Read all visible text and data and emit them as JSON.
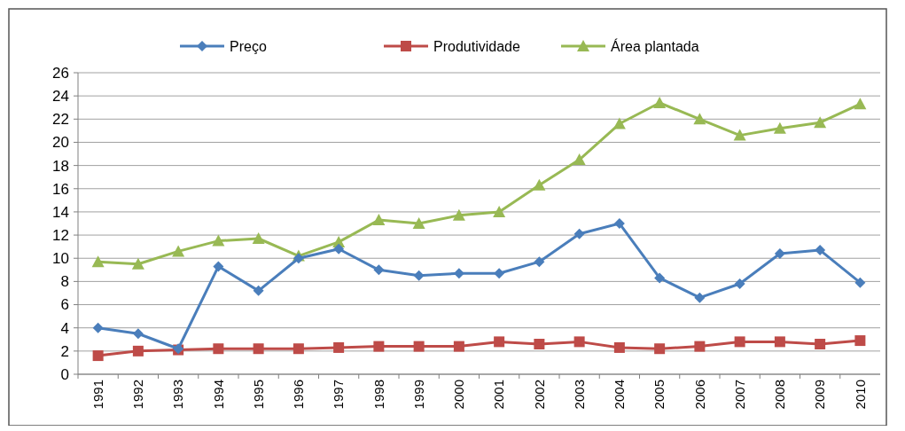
{
  "chart_data": {
    "type": "line",
    "categories": [
      "1991",
      "1992",
      "1993",
      "1994",
      "1995",
      "1996",
      "1997",
      "1998",
      "1999",
      "2000",
      "2001",
      "2002",
      "2003",
      "2004",
      "2005",
      "2006",
      "2007",
      "2008",
      "2009",
      "2010"
    ],
    "series": [
      {
        "name": "Preço",
        "color": "#4a7ebb",
        "marker": "diamond",
        "values": [
          4.0,
          3.5,
          2.2,
          9.3,
          7.2,
          10.0,
          10.8,
          9.0,
          8.5,
          8.7,
          8.7,
          9.7,
          12.1,
          13.0,
          8.3,
          6.6,
          7.8,
          10.4,
          10.7,
          7.9
        ]
      },
      {
        "name": "Produtividade",
        "color": "#be4b48",
        "marker": "square",
        "values": [
          1.6,
          2.0,
          2.1,
          2.2,
          2.2,
          2.2,
          2.3,
          2.4,
          2.4,
          2.4,
          2.8,
          2.6,
          2.8,
          2.3,
          2.2,
          2.4,
          2.8,
          2.8,
          2.6,
          2.9
        ]
      },
      {
        "name": "Área plantada",
        "color": "#98b954",
        "marker": "triangle",
        "values": [
          9.7,
          9.5,
          10.6,
          11.5,
          11.7,
          10.2,
          11.4,
          13.3,
          13.0,
          13.7,
          14.0,
          16.3,
          18.5,
          21.6,
          23.4,
          22.0,
          20.6,
          21.2,
          21.7,
          23.3
        ]
      }
    ],
    "ylim": [
      0,
      26
    ],
    "yticks": [
      0,
      2,
      4,
      6,
      8,
      10,
      12,
      14,
      16,
      18,
      20,
      22,
      24,
      26
    ],
    "grid": "y",
    "legend": "top",
    "line_style": "solid"
  }
}
